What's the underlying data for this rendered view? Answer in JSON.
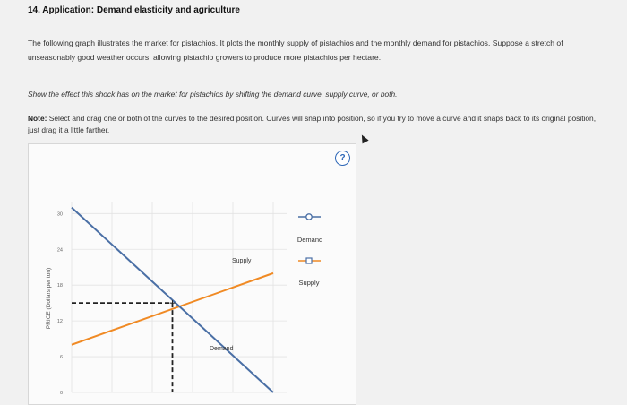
{
  "question": {
    "title": "14. Application: Demand elasticity and agriculture",
    "intro": "The following graph illustrates the market for pistachios. It plots the monthly supply of pistachios and the monthly demand for pistachios. Suppose a stretch of unseasonably good weather occurs, allowing pistachio growers to produce more pistachios per hectare.",
    "instruction": "Show the effect this shock has on the market for pistachios by shifting the demand curve, supply curve, or both.",
    "note_label": "Note:",
    "note_text": "Select and drag one or both of the curves to the desired position. Curves will snap into position, so if you try to move a curve and it snaps back to its original position, just drag it a little farther."
  },
  "help": {
    "label": "?"
  },
  "legend": {
    "demand_label": "Demand",
    "supply_label": "Supply"
  },
  "chart_data": {
    "type": "line",
    "ylabel": "PRICE (Dollars per ton)",
    "yticks": [
      "30",
      "24",
      "18",
      "12",
      "6",
      "0"
    ],
    "ylim": [
      0,
      32
    ],
    "xlim": [
      0,
      32
    ],
    "series": [
      {
        "name": "Supply",
        "color": "#f08a24",
        "points": [
          [
            0,
            8
          ],
          [
            30,
            20
          ]
        ]
      },
      {
        "name": "Demand",
        "color": "#4a6fa5",
        "points": [
          [
            0,
            31
          ],
          [
            30,
            0
          ]
        ]
      }
    ],
    "equilibrium": {
      "x": 15,
      "y": 15
    },
    "curve_labels": {
      "supply": "Supply",
      "demand": "Demand"
    }
  }
}
